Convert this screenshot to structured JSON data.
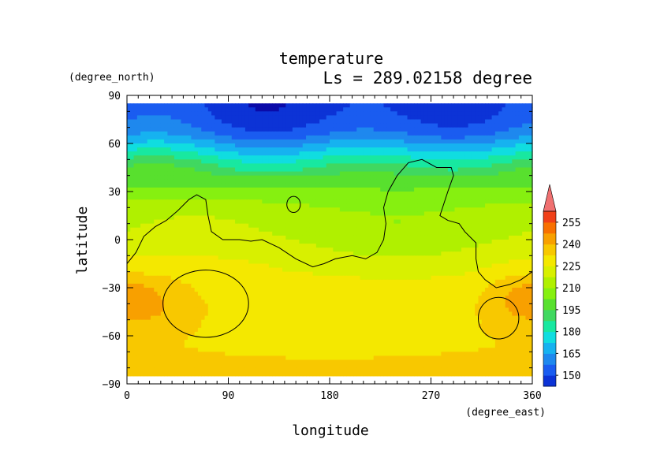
{
  "chart_data": {
    "type": "heatmap",
    "title": "temperature",
    "subtitle": "Ls = 289.02158 degree",
    "xlabel": "longitude",
    "ylabel": "latitude",
    "x_unit": "(degree_east)",
    "y_unit": "(degree_north)",
    "xlim": [
      0,
      360
    ],
    "ylim": [
      -90,
      90
    ],
    "x_ticks": [
      "0",
      "90",
      "180",
      "270",
      "360"
    ],
    "y_ticks": [
      "90",
      "60",
      "30",
      "0",
      "−30",
      "−60",
      "−90"
    ],
    "colorbar": {
      "ticks": [
        "255",
        "240",
        "225",
        "210",
        "195",
        "180",
        "165",
        "150"
      ],
      "levels": [
        142.5,
        150,
        157.5,
        165,
        172.5,
        180,
        187.5,
        195,
        202.5,
        210,
        217.5,
        225,
        232.5,
        240,
        247.5,
        255,
        262.5
      ],
      "colors": [
        "#0a0aa8",
        "#0c33d6",
        "#1a5cf0",
        "#1e88ee",
        "#16b2f0",
        "#10dde0",
        "#18e8a0",
        "#40d860",
        "#58e02e",
        "#86f010",
        "#b0f000",
        "#d8f000",
        "#f4e800",
        "#f8c800",
        "#f8a000",
        "#f87000",
        "#f04018",
        "#e82028",
        "#f07070"
      ]
    },
    "field": {
      "lat": [
        85,
        80,
        75,
        70,
        65,
        60,
        55,
        50,
        45,
        40,
        35,
        30,
        25,
        20,
        15,
        10,
        5,
        0,
        -5,
        -10,
        -15,
        -20,
        -25,
        -30,
        -35,
        -40,
        -45,
        -50,
        -55,
        -60,
        -65,
        -70,
        -75,
        -80,
        -85
      ],
      "zonal_mean": [
        148,
        149,
        151,
        154,
        159,
        167,
        175,
        183,
        190,
        196,
        201,
        205,
        209,
        212,
        215,
        216,
        217,
        219,
        221,
        223,
        225,
        226,
        228,
        229,
        229,
        230,
        231,
        231,
        232,
        232,
        232,
        233,
        234,
        234,
        234
      ]
    },
    "topography_contour": "continental outline (black line)"
  }
}
